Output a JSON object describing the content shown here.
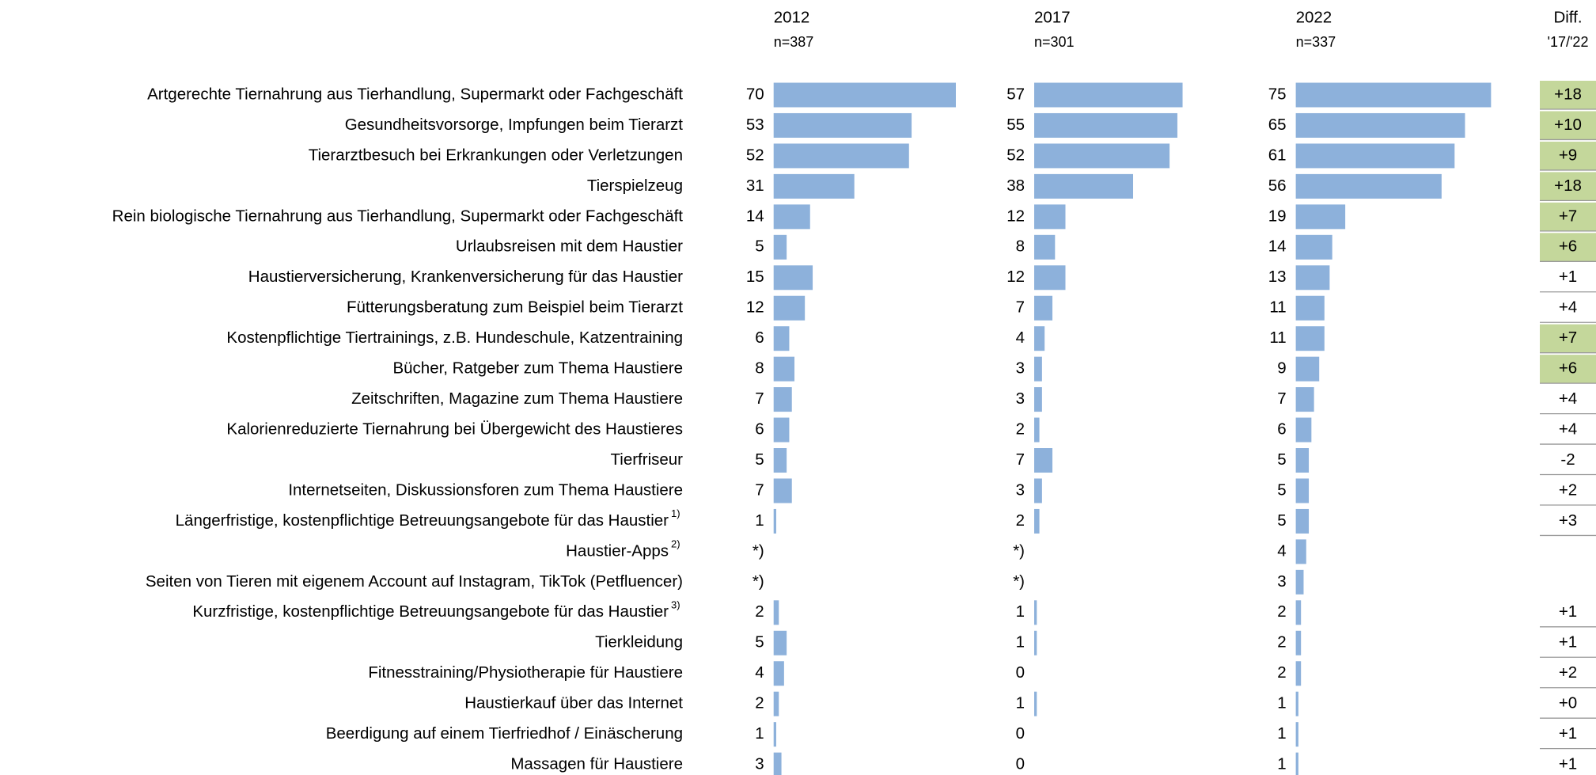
{
  "chart_data": {
    "type": "bar",
    "orientation": "horizontal",
    "categories": [
      "Artgerechte Tiernahrung aus Tierhandlung, Supermarkt oder Fachgeschäft",
      "Gesundheitsvorsorge, Impfungen beim Tierarzt",
      "Tierarztbesuch bei Erkrankungen oder Verletzungen",
      "Tierspielzeug",
      "Rein biologische Tiernahrung aus Tierhandlung, Supermarkt oder Fachgeschäft",
      "Urlaubsreisen mit dem Haustier",
      "Haustierversicherung, Krankenversicherung für das Haustier",
      "Fütterungsberatung zum Beispiel beim Tierarzt",
      "Kostenpflichtige Tiertrainings, z.B. Hundeschule, Katzentraining",
      "Bücher, Ratgeber zum Thema Haustiere",
      "Zeitschriften, Magazine zum Thema Haustiere",
      "Kalorienreduzierte Tiernahrung bei Übergewicht des Haustieres",
      "Tierfriseur",
      "Internetseiten, Diskussionsforen zum Thema Haustiere",
      "Längerfristige, kostenpflichtige Betreuungsangebote für das Haustier",
      "Haustier-Apps",
      "Seiten von Tieren mit eigenem Account auf Instagram, TikTok (Petfluencer)",
      "Kurzfristige, kostenpflichtige Betreuungsangebote für das Haustier",
      "Tierkleidung",
      "Fitnesstraining/Physiotherapie für Haustiere",
      "Haustierkauf über das Internet",
      "Beerdigung auf einem Tierfriedhof / Einäscherung",
      "Massagen für Haustiere"
    ],
    "category_notes": [
      null,
      null,
      null,
      null,
      null,
      null,
      null,
      null,
      null,
      null,
      null,
      null,
      null,
      null,
      "1)",
      "2)",
      null,
      "3)",
      null,
      null,
      null,
      null,
      null
    ],
    "color": "#8db1db",
    "series": [
      {
        "name": "2012",
        "subtitle": "n=387",
        "values": [
          70,
          53,
          52,
          31,
          14,
          5,
          15,
          12,
          6,
          8,
          7,
          6,
          5,
          7,
          1,
          null,
          null,
          2,
          5,
          4,
          2,
          1,
          3
        ],
        "value_labels": [
          "70",
          "53",
          "52",
          "31",
          "14",
          "5",
          "15",
          "12",
          "6",
          "8",
          "7",
          "6",
          "5",
          "7",
          "1",
          "*)",
          "*)",
          "2",
          "5",
          "4",
          "2",
          "1",
          "3"
        ]
      },
      {
        "name": "2017",
        "subtitle": "n=301",
        "values": [
          57,
          55,
          52,
          38,
          12,
          8,
          12,
          7,
          4,
          3,
          3,
          2,
          7,
          3,
          2,
          null,
          null,
          1,
          1,
          0,
          1,
          0,
          0
        ],
        "value_labels": [
          "57",
          "55",
          "52",
          "38",
          "12",
          "8",
          "12",
          "7",
          "4",
          "3",
          "3",
          "2",
          "7",
          "3",
          "2",
          "*)",
          "*)",
          "1",
          "1",
          "0",
          "1",
          "0",
          "0"
        ]
      },
      {
        "name": "2022",
        "subtitle": "n=337",
        "values": [
          75,
          65,
          61,
          56,
          19,
          14,
          13,
          11,
          11,
          9,
          7,
          6,
          5,
          5,
          5,
          4,
          3,
          2,
          2,
          2,
          1,
          1,
          1
        ],
        "value_labels": [
          "75",
          "65",
          "61",
          "56",
          "19",
          "14",
          "13",
          "11",
          "11",
          "9",
          "7",
          "6",
          "5",
          "5",
          "5",
          "4",
          "3",
          "2",
          "2",
          "2",
          "1",
          "1",
          "1"
        ]
      }
    ],
    "diff": {
      "title": "Diff.",
      "subtitle": "'17/'22",
      "values": [
        18,
        10,
        9,
        18,
        7,
        6,
        1,
        4,
        7,
        6,
        4,
        4,
        -2,
        2,
        3,
        null,
        null,
        1,
        1,
        2,
        0,
        1,
        1
      ],
      "value_labels": [
        "+18",
        "+10",
        "+9",
        "+18",
        "+7",
        "+6",
        "+1",
        "+4",
        "+7",
        "+6",
        "+4",
        "+4",
        "-2",
        "+2",
        "+3",
        null,
        null,
        "+1",
        "+1",
        "+2",
        "+0",
        "+1",
        "+1"
      ],
      "highlighted": [
        true,
        true,
        true,
        true,
        true,
        true,
        false,
        false,
        true,
        true,
        false,
        false,
        false,
        false,
        false,
        false,
        false,
        false,
        false,
        false,
        false,
        false,
        false
      ],
      "highlight_color": "#c4d79b"
    }
  }
}
